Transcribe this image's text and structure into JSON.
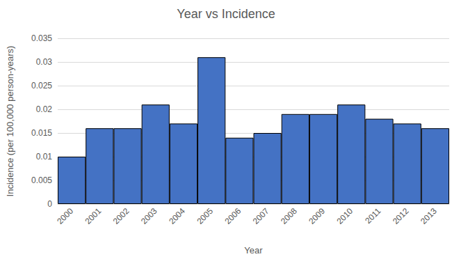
{
  "chart_data": {
    "type": "bar",
    "title": "Year vs Incidence",
    "x_label": "Year",
    "y_label": "Incidence (per 100,000 person-years)",
    "categories": [
      "2000",
      "2001",
      "2002",
      "2003",
      "2004",
      "2005",
      "2006",
      "2007",
      "2008",
      "2009",
      "2010",
      "2011",
      "2012",
      "2013"
    ],
    "values": [
      0.01,
      0.016,
      0.016,
      0.021,
      0.017,
      0.031,
      0.014,
      0.015,
      0.019,
      0.019,
      0.021,
      0.018,
      0.017,
      0.016
    ],
    "color": "#4472c4",
    "ylim": [
      0,
      0.035
    ],
    "yticks": [
      0,
      0.005,
      0.01,
      0.015,
      0.02,
      0.025,
      0.03,
      0.035
    ],
    "grid": true
  }
}
